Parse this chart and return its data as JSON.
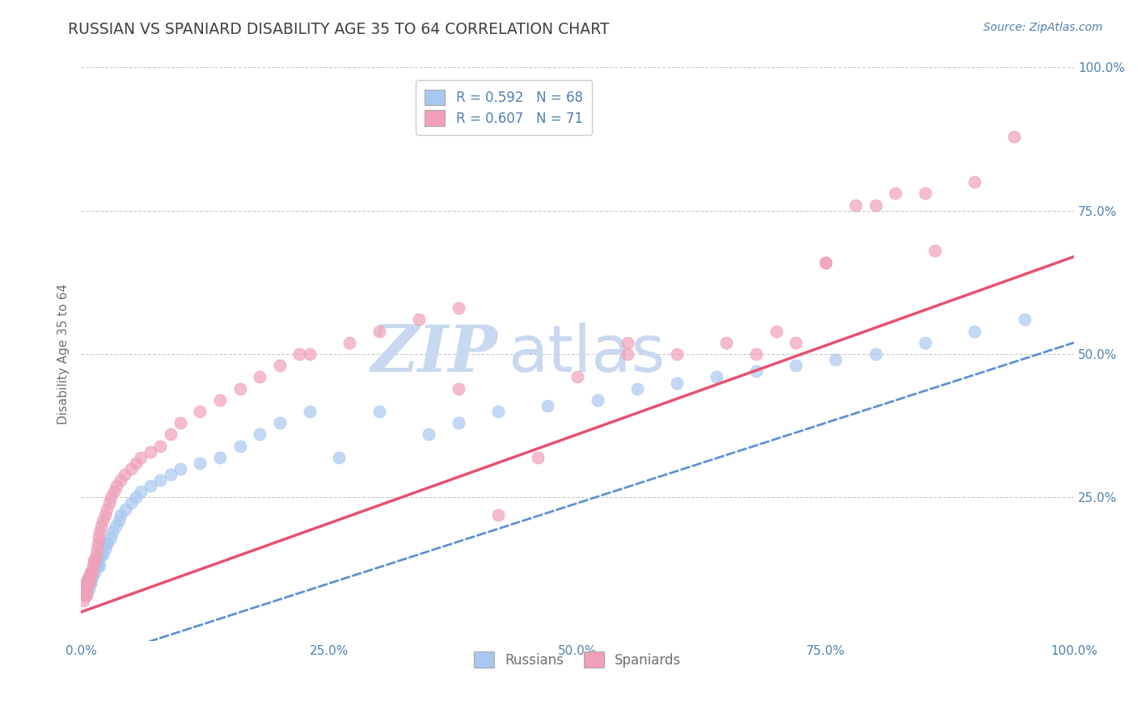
{
  "title": "RUSSIAN VS SPANIARD DISABILITY AGE 35 TO 64 CORRELATION CHART",
  "source_text": "Source: ZipAtlas.com",
  "ylabel": "Disability Age 35 to 64",
  "xlim": [
    0.0,
    1.0
  ],
  "ylim": [
    0.0,
    1.0
  ],
  "x_tick_labels": [
    "0.0%",
    "25.0%",
    "50.0%",
    "75.0%",
    "100.0%"
  ],
  "x_tick_positions": [
    0.0,
    0.25,
    0.5,
    0.75,
    1.0
  ],
  "y_tick_labels": [
    "25.0%",
    "50.0%",
    "75.0%",
    "100.0%"
  ],
  "y_tick_positions": [
    0.25,
    0.5,
    0.75,
    1.0
  ],
  "russian_color": "#A8C8F0",
  "spaniard_color": "#F0A0B8",
  "russian_line_color": "#6090D0",
  "spaniard_line_color": "#E85070",
  "watermark_zip_color": "#C8D8F0",
  "watermark_atlas_color": "#C8D8F0",
  "R_russian": 0.592,
  "N_russian": 68,
  "R_spaniard": 0.607,
  "N_spaniard": 71,
  "background_color": "#FFFFFF",
  "grid_color": "#BBBBBB",
  "title_color": "#404040",
  "axis_label_color": "#707070",
  "tick_label_color": "#5080B0",
  "russian_line_intercept": -0.04,
  "russian_line_slope": 0.56,
  "spaniard_line_intercept": 0.05,
  "spaniard_line_slope": 0.62,
  "russian_x": [
    0.002,
    0.003,
    0.003,
    0.004,
    0.004,
    0.005,
    0.005,
    0.006,
    0.006,
    0.007,
    0.007,
    0.008,
    0.008,
    0.009,
    0.009,
    0.01,
    0.01,
    0.01,
    0.011,
    0.012,
    0.013,
    0.014,
    0.015,
    0.016,
    0.017,
    0.018,
    0.019,
    0.02,
    0.022,
    0.024,
    0.025,
    0.027,
    0.03,
    0.032,
    0.035,
    0.038,
    0.04,
    0.045,
    0.05,
    0.055,
    0.06,
    0.07,
    0.08,
    0.09,
    0.1,
    0.12,
    0.14,
    0.16,
    0.18,
    0.2,
    0.23,
    0.26,
    0.3,
    0.35,
    0.38,
    0.42,
    0.47,
    0.52,
    0.56,
    0.6,
    0.64,
    0.68,
    0.72,
    0.76,
    0.8,
    0.85,
    0.9,
    0.95
  ],
  "russian_y": [
    0.08,
    0.09,
    0.1,
    0.08,
    0.09,
    0.1,
    0.09,
    0.08,
    0.09,
    0.1,
    0.11,
    0.09,
    0.1,
    0.11,
    0.1,
    0.11,
    0.12,
    0.1,
    0.11,
    0.12,
    0.13,
    0.12,
    0.13,
    0.14,
    0.13,
    0.14,
    0.13,
    0.15,
    0.15,
    0.16,
    0.17,
    0.17,
    0.18,
    0.19,
    0.2,
    0.21,
    0.22,
    0.23,
    0.24,
    0.25,
    0.26,
    0.27,
    0.28,
    0.29,
    0.3,
    0.31,
    0.32,
    0.34,
    0.36,
    0.38,
    0.4,
    0.32,
    0.4,
    0.36,
    0.38,
    0.4,
    0.41,
    0.42,
    0.44,
    0.45,
    0.46,
    0.47,
    0.48,
    0.49,
    0.5,
    0.52,
    0.54,
    0.56
  ],
  "spaniard_x": [
    0.002,
    0.003,
    0.003,
    0.004,
    0.004,
    0.005,
    0.005,
    0.006,
    0.006,
    0.007,
    0.007,
    0.008,
    0.009,
    0.01,
    0.011,
    0.012,
    0.013,
    0.014,
    0.015,
    0.016,
    0.017,
    0.018,
    0.019,
    0.02,
    0.022,
    0.024,
    0.026,
    0.028,
    0.03,
    0.033,
    0.036,
    0.04,
    0.044,
    0.05,
    0.055,
    0.06,
    0.07,
    0.08,
    0.09,
    0.1,
    0.12,
    0.14,
    0.16,
    0.18,
    0.2,
    0.23,
    0.27,
    0.3,
    0.34,
    0.38,
    0.42,
    0.46,
    0.5,
    0.55,
    0.6,
    0.65,
    0.7,
    0.75,
    0.8,
    0.85,
    0.22,
    0.38,
    0.55,
    0.68,
    0.72,
    0.75,
    0.78,
    0.82,
    0.86,
    0.9,
    0.94
  ],
  "spaniard_y": [
    0.07,
    0.08,
    0.09,
    0.08,
    0.09,
    0.09,
    0.1,
    0.08,
    0.09,
    0.1,
    0.11,
    0.1,
    0.11,
    0.12,
    0.12,
    0.13,
    0.14,
    0.14,
    0.15,
    0.16,
    0.17,
    0.18,
    0.19,
    0.2,
    0.21,
    0.22,
    0.23,
    0.24,
    0.25,
    0.26,
    0.27,
    0.28,
    0.29,
    0.3,
    0.31,
    0.32,
    0.33,
    0.34,
    0.36,
    0.38,
    0.4,
    0.42,
    0.44,
    0.46,
    0.48,
    0.5,
    0.52,
    0.54,
    0.56,
    0.58,
    0.22,
    0.32,
    0.46,
    0.5,
    0.5,
    0.52,
    0.54,
    0.66,
    0.76,
    0.78,
    0.5,
    0.44,
    0.52,
    0.5,
    0.52,
    0.66,
    0.76,
    0.78,
    0.68,
    0.8,
    0.88
  ]
}
